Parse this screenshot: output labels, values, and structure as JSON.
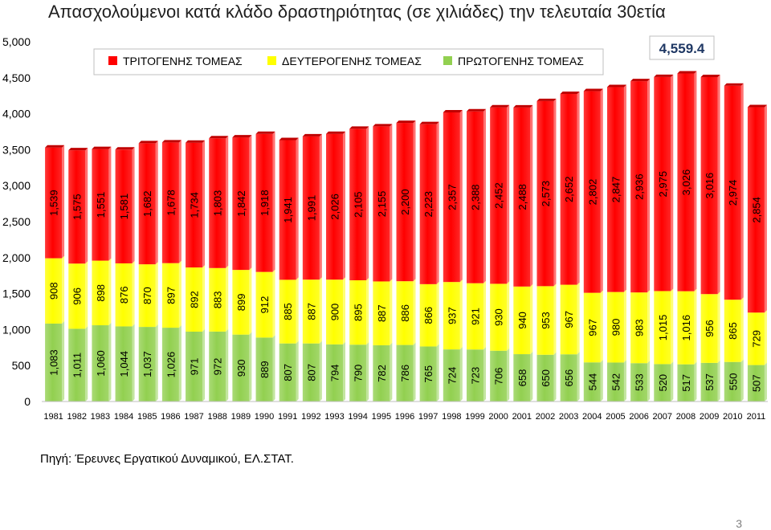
{
  "chart_data": {
    "type": "bar",
    "stacked": true,
    "title": "Απασχολούμενοι κατά κλάδο δραστηριότητας (σε χιλιάδες) την τελευταία 30ετία",
    "categories": [
      "1981",
      "1982",
      "1983",
      "1984",
      "1985",
      "1986",
      "1987",
      "1988",
      "1989",
      "1990",
      "1991",
      "1992",
      "1993",
      "1994",
      "1995",
      "1996",
      "1997",
      "1998",
      "1999",
      "2000",
      "2001",
      "2002",
      "2003",
      "2004",
      "2005",
      "2006",
      "2007",
      "2008",
      "2009",
      "2010",
      "2011"
    ],
    "series": [
      {
        "name": "ΠΡΩΤΟΓΕΝΗΣ ΤΟΜΕΑΣ",
        "color": "#92d050",
        "values": [
          1083,
          1011,
          1060,
          1044,
          1037,
          1026,
          971,
          972,
          930,
          889,
          807,
          807,
          794,
          790,
          782,
          786,
          765,
          724,
          723,
          706,
          658,
          650,
          656,
          544,
          542,
          533,
          520,
          517,
          537,
          550,
          507
        ],
        "labels": [
          "1,083",
          "1,011",
          "1,060",
          "1,044",
          "1,037",
          "1,026",
          "971",
          "972",
          "930",
          "889",
          "807",
          "807",
          "794",
          "790",
          "782",
          "786",
          "765",
          "724",
          "723",
          "706",
          "658",
          "650",
          "656",
          "544",
          "542",
          "533",
          "520",
          "517",
          "537",
          "550",
          "507"
        ]
      },
      {
        "name": "ΔΕΥΤΕΡΟΓΕΝΗΣ ΤΟΜΕΑΣ",
        "color": "#ffff00",
        "values": [
          908,
          906,
          898,
          876,
          870,
          897,
          892,
          883,
          899,
          912,
          885,
          887,
          900,
          895,
          887,
          886,
          866,
          937,
          921,
          930,
          940,
          953,
          967,
          967,
          980,
          983,
          1015,
          1016,
          956,
          865,
          729
        ],
        "labels": [
          "908",
          "906",
          "898",
          "876",
          "870",
          "897",
          "892",
          "883",
          "899",
          "912",
          "885",
          "887",
          "900",
          "895",
          "887",
          "886",
          "866",
          "937",
          "921",
          "930",
          "940",
          "953",
          "967",
          "967",
          "980",
          "983",
          "1,015",
          "1,016",
          "956",
          "865",
          "729"
        ]
      },
      {
        "name": "ΤΡΙΤΟΓΕΝΗΣ ΤΟΜΕΑΣ",
        "color": "#ff0000",
        "values": [
          1539,
          1575,
          1551,
          1581,
          1682,
          1678,
          1734,
          1803,
          1842,
          1918,
          1941,
          1991,
          2026,
          2105,
          2155,
          2200,
          2223,
          2357,
          2388,
          2452,
          2488,
          2573,
          2652,
          2802,
          2847,
          2936,
          2975,
          3026,
          3016,
          2974,
          2854
        ],
        "labels": [
          "1,539",
          "1,575",
          "1,551",
          "1,581",
          "1,682",
          "1,678",
          "1,734",
          "1,803",
          "1,842",
          "1,918",
          "1,941",
          "1,991",
          "2,026",
          "2,105",
          "2,155",
          "2,200",
          "2,223",
          "2,357",
          "2,388",
          "2,452",
          "2,488",
          "2,573",
          "2,652",
          "2,802",
          "2,847",
          "2,936",
          "2,975",
          "3,026",
          "3,016",
          "2,974",
          "2,854"
        ]
      }
    ],
    "legend_order": [
      "ΤΡΙΤΟΓΕΝΗΣ ΤΟΜΕΑΣ",
      "ΔΕΥΤΕΡΟΓΕΝΗΣ ΤΟΜΕΑΣ",
      "ΠΡΩΤΟΓΕΝΗΣ ΤΟΜΕΑΣ"
    ],
    "legend_position": "top",
    "ylim": [
      0,
      5000
    ],
    "yticks": [
      0,
      500,
      1000,
      1500,
      2000,
      2500,
      3000,
      3500,
      4000,
      4500,
      5000
    ],
    "ytick_labels": [
      "0",
      "500",
      "1,000",
      "1,500",
      "2,000",
      "2,500",
      "3,000",
      "3,500",
      "4,000",
      "4,500",
      "5,000"
    ],
    "grid": false,
    "annotation": {
      "text": "4,559.4",
      "value": 4559.4,
      "position": "top-right"
    }
  },
  "source_text": "Πηγή: Έρευνες Εργατικού Δυναμικού, ΕΛ.ΣΤΑΤ.",
  "page_number": "3"
}
